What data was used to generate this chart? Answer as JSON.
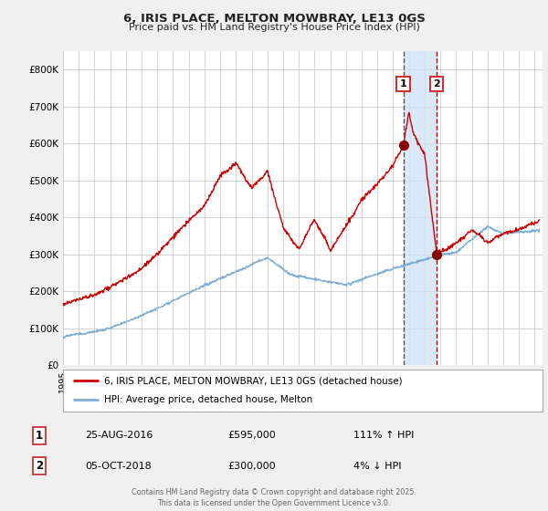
{
  "title1": "6, IRIS PLACE, MELTON MOWBRAY, LE13 0GS",
  "title2": "Price paid vs. HM Land Registry's House Price Index (HPI)",
  "yticks": [
    0,
    100000,
    200000,
    300000,
    400000,
    500000,
    600000,
    700000,
    800000
  ],
  "ytick_labels": [
    "£0",
    "£100K",
    "£200K",
    "£300K",
    "£400K",
    "£500K",
    "£600K",
    "£700K",
    "£800K"
  ],
  "xlim_start": 1995.0,
  "xlim_end": 2025.5,
  "ylim": [
    0,
    850000
  ],
  "point1_x": 2016.65,
  "point1_y": 595000,
  "point2_x": 2018.76,
  "point2_y": 300000,
  "vline1_x": 2016.65,
  "vline2_x": 2018.76,
  "red_color": "#cc0000",
  "blue_color": "#7dadd4",
  "shade_color": "#d0e4f5",
  "legend1": "6, IRIS PLACE, MELTON MOWBRAY, LE13 0GS (detached house)",
  "legend2": "HPI: Average price, detached house, Melton",
  "annotation1_date": "25-AUG-2016",
  "annotation1_price": "£595,000",
  "annotation1_hpi": "111% ↑ HPI",
  "annotation2_date": "05-OCT-2018",
  "annotation2_price": "£300,000",
  "annotation2_hpi": "4% ↓ HPI",
  "footer": "Contains HM Land Registry data © Crown copyright and database right 2025.\nThis data is licensed under the Open Government Licence v3.0.",
  "background_color": "#f0f0f0",
  "plot_bg_color": "#ffffff"
}
